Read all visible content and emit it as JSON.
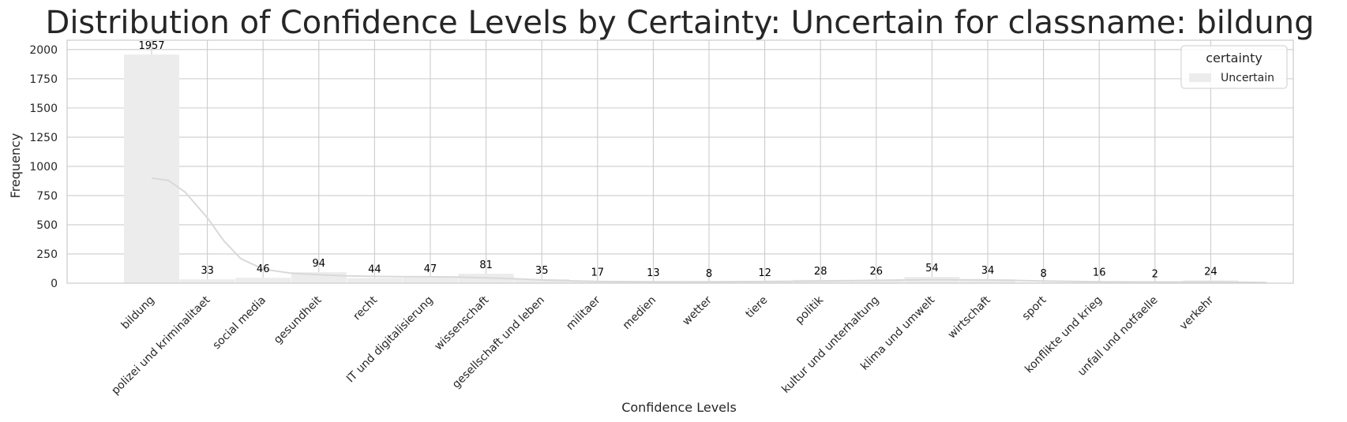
{
  "chart_data": {
    "type": "bar",
    "title": "Distribution of Confidence Levels by Certainty: Uncertain for classname: bildung",
    "xlabel": "Confidence Levels",
    "ylabel": "Frequency",
    "categories": [
      "bildung",
      "polizei und kriminalitaet",
      "social media",
      "gesundheit",
      "recht",
      "IT und digitalisierung",
      "wissenschaft",
      "gesellschaft und leben",
      "militaer",
      "medien",
      "wetter",
      "tiere",
      "politik",
      "kultur und unterhaltung",
      "klima und umwelt",
      "wirtschaft",
      "sport",
      "konflikte und krieg",
      "unfall und notfaelle",
      "verkehr"
    ],
    "series": [
      {
        "name": "Uncertain",
        "values": [
          1957,
          33,
          46,
          94,
          44,
          47,
          81,
          35,
          17,
          13,
          8,
          12,
          28,
          26,
          54,
          34,
          8,
          16,
          2,
          24
        ]
      }
    ],
    "ylim": [
      0,
      2080
    ],
    "yticks": [
      0,
      250,
      500,
      750,
      1000,
      1250,
      1500,
      1750,
      2000
    ],
    "kde": [
      [
        0,
        900
      ],
      [
        0.3,
        880
      ],
      [
        0.6,
        780
      ],
      [
        1.0,
        560
      ],
      [
        1.3,
        360
      ],
      [
        1.6,
        210
      ],
      [
        2.0,
        120
      ],
      [
        2.5,
        85
      ],
      [
        3.0,
        72
      ],
      [
        3.5,
        62
      ],
      [
        4.0,
        58
      ],
      [
        4.5,
        56
      ],
      [
        5.0,
        55
      ],
      [
        5.5,
        52
      ],
      [
        6.0,
        46
      ],
      [
        6.5,
        38
      ],
      [
        7.0,
        28
      ],
      [
        7.5,
        20
      ],
      [
        8.0,
        15
      ],
      [
        9.0,
        12
      ],
      [
        10.0,
        12
      ],
      [
        11.0,
        14
      ],
      [
        12.0,
        18
      ],
      [
        13.0,
        24
      ],
      [
        14.0,
        30
      ],
      [
        15.0,
        28
      ],
      [
        16.0,
        18
      ],
      [
        17.0,
        12
      ],
      [
        18.0,
        10
      ],
      [
        19.0,
        10
      ],
      [
        19.5,
        8
      ],
      [
        20.0,
        5
      ]
    ],
    "legend": {
      "title": "certainty",
      "position": "top-right"
    },
    "grid": true,
    "colors": {
      "bar": "#ececec",
      "kde": "#d9d9d9",
      "grid": "#cccccc",
      "frame": "#cccccc"
    }
  }
}
